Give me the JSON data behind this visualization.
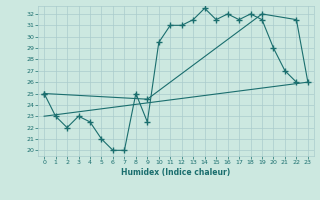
{
  "xlabel": "Humidex (Indice chaleur)",
  "background_color": "#cce8e0",
  "grid_color": "#aacccc",
  "line_color": "#1a6e6e",
  "xlim": [
    -0.5,
    23.5
  ],
  "ylim": [
    19.5,
    32.7
  ],
  "yticks": [
    20,
    21,
    22,
    23,
    24,
    25,
    26,
    27,
    28,
    29,
    30,
    31,
    32
  ],
  "xticks": [
    0,
    1,
    2,
    3,
    4,
    5,
    6,
    7,
    8,
    9,
    10,
    11,
    12,
    13,
    14,
    15,
    16,
    17,
    18,
    19,
    20,
    21,
    22,
    23
  ],
  "line1_x": [
    0,
    1,
    2,
    3,
    4,
    5,
    6,
    7,
    8,
    9,
    10,
    11,
    12,
    13,
    14,
    15,
    16,
    17,
    18,
    19,
    20,
    21,
    22
  ],
  "line1_y": [
    25.0,
    23.0,
    22.0,
    23.0,
    22.5,
    21.0,
    20.0,
    20.0,
    25.0,
    22.5,
    29.5,
    31.0,
    31.0,
    31.5,
    32.5,
    31.5,
    32.0,
    31.5,
    32.0,
    31.5,
    29.0,
    27.0,
    26.0
  ],
  "line2_x": [
    0,
    9,
    19,
    22,
    23
  ],
  "line2_y": [
    25.0,
    24.5,
    32.0,
    31.5,
    26.0
  ],
  "line3_x": [
    0,
    23
  ],
  "line3_y": [
    23.0,
    26.0
  ]
}
